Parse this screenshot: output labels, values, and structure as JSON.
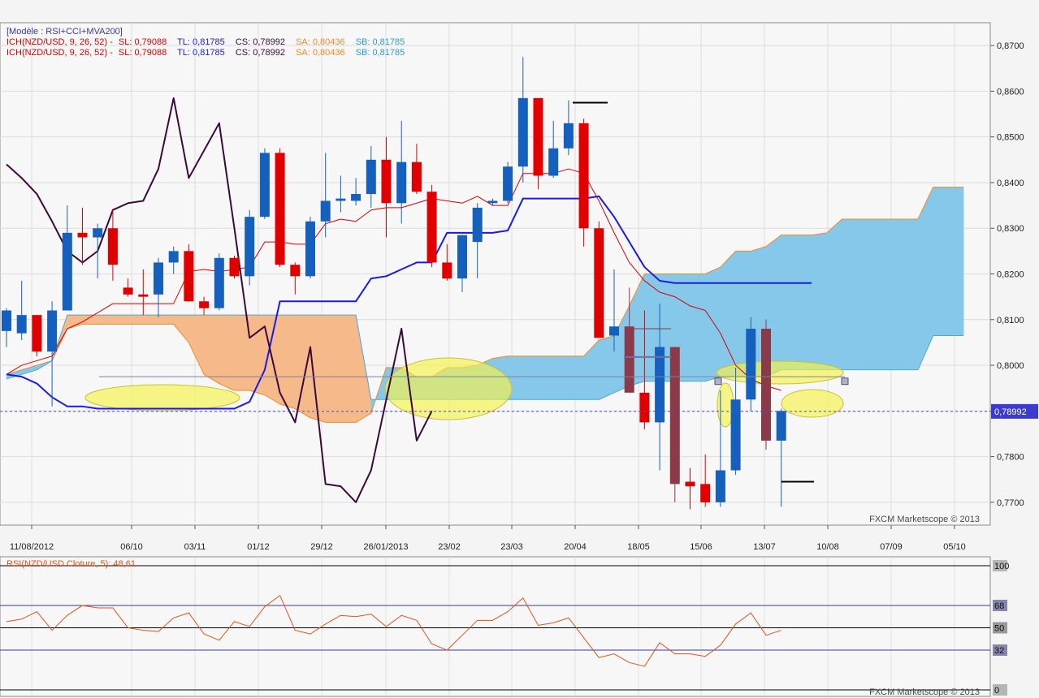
{
  "legend": {
    "model": "[Modèle : RSI+CCI+MVA200]",
    "ich_lines": [
      {
        "prefix": "ICH(NZD/USD, 9, 26, 52) -",
        "sl": "SL: 0,79088",
        "tl": "TL: 0,81785",
        "cs": "CS: 0,78992",
        "sa": "SA: 0,80436",
        "sb": "SB: 0,81785"
      },
      {
        "prefix": "ICH(NZD/USD, 9, 26, 52) -",
        "sl": "SL: 0,79088",
        "tl": "TL: 0,81785",
        "cs": "CS: 0,78992",
        "sa": "SA: 0,80436",
        "sb": "SB: 0,81785"
      }
    ]
  },
  "watermark": "FXCM Marketscope © 2013",
  "colors": {
    "bull": "#1560bd",
    "bear": "#e00000",
    "bear_highlight": "#8b3a4a",
    "tenkan": "#d40000",
    "kijun": "#1a1ae6",
    "chikou": "#3a0a3a",
    "cloud_bull": "#86c8ea",
    "cloud_bear": "#f5b98a",
    "rsi": "#e0521a",
    "highlight": "#f7f24a"
  },
  "chart_data": [
    {
      "type": "candlestick",
      "ylim": [
        0.765,
        0.875
      ],
      "y_ticks": [
        "0,8700",
        "0,8600",
        "0,8500",
        "0,8400",
        "0,8300",
        "0,8200",
        "0,8100",
        "0,8000",
        "0,7900",
        "0,7800",
        "0,7700"
      ],
      "x_ticks": [
        "11/08/2012",
        "06/10",
        "03/11",
        "01/12",
        "29/12",
        "26/01/2013",
        "23/02",
        "23/03",
        "20/04",
        "18/05",
        "15/06",
        "13/07",
        "10/08",
        "07/09",
        "05/10"
      ],
      "last_price": "0,78992",
      "last_price_value": 0.7899,
      "candles": [
        {
          "o": 0.8075,
          "h": 0.8125,
          "l": 0.804,
          "c": 0.812
        },
        {
          "o": 0.807,
          "h": 0.8185,
          "l": 0.8055,
          "c": 0.811
        },
        {
          "o": 0.811,
          "h": 0.811,
          "l": 0.802,
          "c": 0.803
        },
        {
          "o": 0.803,
          "h": 0.814,
          "l": 0.791,
          "c": 0.812
        },
        {
          "o": 0.812,
          "h": 0.835,
          "l": 0.812,
          "c": 0.829
        },
        {
          "o": 0.829,
          "h": 0.8345,
          "l": 0.822,
          "c": 0.828
        },
        {
          "o": 0.828,
          "h": 0.831,
          "l": 0.819,
          "c": 0.83
        },
        {
          "o": 0.83,
          "h": 0.834,
          "l": 0.8185,
          "c": 0.822
        },
        {
          "o": 0.817,
          "h": 0.819,
          "l": 0.815,
          "c": 0.8155
        },
        {
          "o": 0.8155,
          "h": 0.821,
          "l": 0.811,
          "c": 0.815
        },
        {
          "o": 0.8155,
          "h": 0.8235,
          "l": 0.8105,
          "c": 0.8225
        },
        {
          "o": 0.8225,
          "h": 0.826,
          "l": 0.82,
          "c": 0.825
        },
        {
          "o": 0.825,
          "h": 0.8265,
          "l": 0.814,
          "c": 0.814
        },
        {
          "o": 0.814,
          "h": 0.815,
          "l": 0.811,
          "c": 0.8125
        },
        {
          "o": 0.8125,
          "h": 0.8245,
          "l": 0.812,
          "c": 0.8235
        },
        {
          "o": 0.8235,
          "h": 0.824,
          "l": 0.819,
          "c": 0.8195
        },
        {
          "o": 0.8195,
          "h": 0.834,
          "l": 0.8175,
          "c": 0.8325
        },
        {
          "o": 0.8325,
          "h": 0.8475,
          "l": 0.832,
          "c": 0.8465
        },
        {
          "o": 0.8465,
          "h": 0.8475,
          "l": 0.8215,
          "c": 0.822
        },
        {
          "o": 0.822,
          "h": 0.8225,
          "l": 0.8155,
          "c": 0.8195
        },
        {
          "o": 0.8195,
          "h": 0.8325,
          "l": 0.819,
          "c": 0.8315
        },
        {
          "o": 0.8315,
          "h": 0.8465,
          "l": 0.828,
          "c": 0.836
        },
        {
          "o": 0.836,
          "h": 0.8415,
          "l": 0.8335,
          "c": 0.8365
        },
        {
          "o": 0.836,
          "h": 0.841,
          "l": 0.835,
          "c": 0.8375
        },
        {
          "o": 0.8375,
          "h": 0.848,
          "l": 0.8345,
          "c": 0.845
        },
        {
          "o": 0.845,
          "h": 0.85,
          "l": 0.828,
          "c": 0.8355
        },
        {
          "o": 0.8355,
          "h": 0.8535,
          "l": 0.831,
          "c": 0.8445
        },
        {
          "o": 0.8445,
          "h": 0.8485,
          "l": 0.8375,
          "c": 0.838
        },
        {
          "o": 0.838,
          "h": 0.8395,
          "l": 0.8215,
          "c": 0.8225
        },
        {
          "o": 0.8225,
          "h": 0.8265,
          "l": 0.8185,
          "c": 0.819
        },
        {
          "o": 0.819,
          "h": 0.8285,
          "l": 0.816,
          "c": 0.8285
        },
        {
          "o": 0.827,
          "h": 0.8355,
          "l": 0.819,
          "c": 0.8345
        },
        {
          "o": 0.8355,
          "h": 0.8365,
          "l": 0.835,
          "c": 0.836
        },
        {
          "o": 0.836,
          "h": 0.8445,
          "l": 0.8355,
          "c": 0.8435
        },
        {
          "o": 0.8435,
          "h": 0.8675,
          "l": 0.84,
          "c": 0.8585
        },
        {
          "o": 0.8585,
          "h": 0.8585,
          "l": 0.8385,
          "c": 0.8415
        },
        {
          "o": 0.8415,
          "h": 0.8535,
          "l": 0.841,
          "c": 0.8475
        },
        {
          "o": 0.8475,
          "h": 0.858,
          "l": 0.846,
          "c": 0.853
        },
        {
          "o": 0.853,
          "h": 0.854,
          "l": 0.826,
          "c": 0.83
        },
        {
          "o": 0.83,
          "h": 0.8315,
          "l": 0.806,
          "c": 0.806
        },
        {
          "o": 0.8065,
          "h": 0.821,
          "l": 0.803,
          "c": 0.8085
        },
        {
          "o": 0.8085,
          "h": 0.817,
          "l": 0.794,
          "c": 0.794
        },
        {
          "o": 0.794,
          "h": 0.812,
          "l": 0.786,
          "c": 0.7875
        },
        {
          "o": 0.7875,
          "h": 0.8135,
          "l": 0.777,
          "c": 0.804
        },
        {
          "o": 0.804,
          "h": 0.804,
          "l": 0.77,
          "c": 0.774
        },
        {
          "o": 0.7745,
          "h": 0.7775,
          "l": 0.7685,
          "c": 0.7735
        },
        {
          "o": 0.774,
          "h": 0.7805,
          "l": 0.769,
          "c": 0.77
        },
        {
          "o": 0.77,
          "h": 0.7945,
          "l": 0.769,
          "c": 0.777
        },
        {
          "o": 0.777,
          "h": 0.7995,
          "l": 0.776,
          "c": 0.7925
        },
        {
          "o": 0.7925,
          "h": 0.8105,
          "l": 0.79,
          "c": 0.808
        },
        {
          "o": 0.808,
          "h": 0.81,
          "l": 0.7815,
          "c": 0.7835
        },
        {
          "o": 0.7835,
          "h": 0.7905,
          "l": 0.769,
          "c": 0.79
        }
      ],
      "bear_highlight_candles": [
        41,
        44,
        50
      ],
      "tenkan": [
        0.798,
        0.8,
        0.801,
        0.802,
        0.808,
        0.8095,
        0.8115,
        0.8135,
        0.8135,
        0.8135,
        0.8135,
        0.8135,
        0.8205,
        0.821,
        0.8205,
        0.821,
        0.8215,
        0.827,
        0.827,
        0.8265,
        0.8265,
        0.831,
        0.832,
        0.8315,
        0.834,
        0.8345,
        0.8345,
        0.8355,
        0.8365,
        0.836,
        0.8355,
        0.837,
        0.835,
        0.835,
        0.842,
        0.842,
        0.842,
        0.843,
        0.842,
        0.836,
        0.829,
        0.8225,
        0.8185,
        0.816,
        0.815,
        0.813,
        0.812,
        0.807,
        0.8,
        0.797,
        0.7955,
        0.7945
      ],
      "kijun": [
        0.798,
        0.7975,
        0.796,
        0.793,
        0.791,
        0.791,
        0.7905,
        0.7905,
        0.7905,
        0.7905,
        0.7905,
        0.7905,
        0.7905,
        0.7905,
        0.7905,
        0.7905,
        0.792,
        0.799,
        0.814,
        0.814,
        0.814,
        0.814,
        0.814,
        0.814,
        0.819,
        0.8195,
        0.821,
        0.8225,
        0.8225,
        0.829,
        0.829,
        0.829,
        0.829,
        0.8295,
        0.8365,
        0.8365,
        0.8365,
        0.8365,
        0.8365,
        0.837,
        0.8325,
        0.827,
        0.8215,
        0.8185,
        0.818,
        0.818,
        0.818,
        0.818,
        0.818,
        0.818,
        0.818,
        0.818
      ],
      "chikou": [
        0.844,
        0.841,
        0.8375,
        0.8315,
        0.825,
        0.8225,
        0.825,
        0.834,
        0.8355,
        0.836,
        0.843,
        0.8585,
        0.841,
        0.847,
        0.853,
        0.83,
        0.806,
        0.8085,
        0.794,
        0.7875,
        0.804,
        0.774,
        0.7735,
        0.77,
        0.777,
        0.7925,
        0.808,
        0.7835,
        0.79
      ],
      "cloud_span_a": [
        0.798,
        0.799,
        0.8,
        0.801,
        0.808,
        0.809,
        0.809,
        0.809,
        0.809,
        0.809,
        0.809,
        0.809,
        0.805,
        0.798,
        0.796,
        0.7945,
        0.7945,
        0.7935,
        0.7915,
        0.7905,
        0.7885,
        0.7875,
        0.7875,
        0.7875,
        0.7895,
        0.7995,
        0.7995,
        0.7975,
        0.7975,
        0.7995,
        0.7995,
        0.8,
        0.8015,
        0.802,
        0.802,
        0.802,
        0.802,
        0.802,
        0.802,
        0.8055,
        0.8065,
        0.813,
        0.82,
        0.82,
        0.82,
        0.82,
        0.82,
        0.8215,
        0.825,
        0.825,
        0.826,
        0.8285,
        0.8285,
        0.8285,
        0.829,
        0.832,
        0.832,
        0.832,
        0.832,
        0.832,
        0.832,
        0.839,
        0.839,
        0.839
      ],
      "cloud_span_b": [
        0.797,
        0.798,
        0.799,
        0.801,
        0.811,
        0.811,
        0.811,
        0.811,
        0.811,
        0.811,
        0.811,
        0.811,
        0.811,
        0.811,
        0.811,
        0.811,
        0.811,
        0.811,
        0.811,
        0.811,
        0.811,
        0.811,
        0.811,
        0.811,
        0.7925,
        0.7925,
        0.7925,
        0.7925,
        0.7925,
        0.7925,
        0.7925,
        0.7925,
        0.7925,
        0.7925,
        0.7925,
        0.7925,
        0.7925,
        0.7925,
        0.7925,
        0.7925,
        0.794,
        0.7955,
        0.7965,
        0.7965,
        0.7965,
        0.7965,
        0.7965,
        0.7975,
        0.7975,
        0.7975,
        0.7975,
        0.799,
        0.799,
        0.799,
        0.799,
        0.799,
        0.799,
        0.799,
        0.799,
        0.799,
        0.799,
        0.8065,
        0.8065,
        0.8065
      ]
    },
    {
      "type": "line",
      "title": "RSI(NZD/USD.Cloture, 5): 48,61",
      "ylim": [
        0,
        100
      ],
      "y_ticks": [
        "100",
        "68",
        "50",
        "32",
        "0"
      ],
      "levels": [
        100,
        68,
        50,
        32,
        0
      ],
      "series": [
        {
          "values": [
            55,
            57,
            63,
            48,
            60,
            68,
            66,
            66,
            50,
            48,
            47,
            58,
            62,
            45,
            40,
            55,
            51,
            67,
            76,
            48,
            45,
            53,
            60,
            59,
            61,
            51,
            60,
            56,
            37,
            32,
            44,
            56,
            56,
            63,
            74,
            52,
            54,
            58,
            42,
            26,
            29,
            22,
            19,
            38,
            29,
            29,
            27,
            36,
            53,
            62,
            44,
            48
          ]
        }
      ]
    }
  ]
}
